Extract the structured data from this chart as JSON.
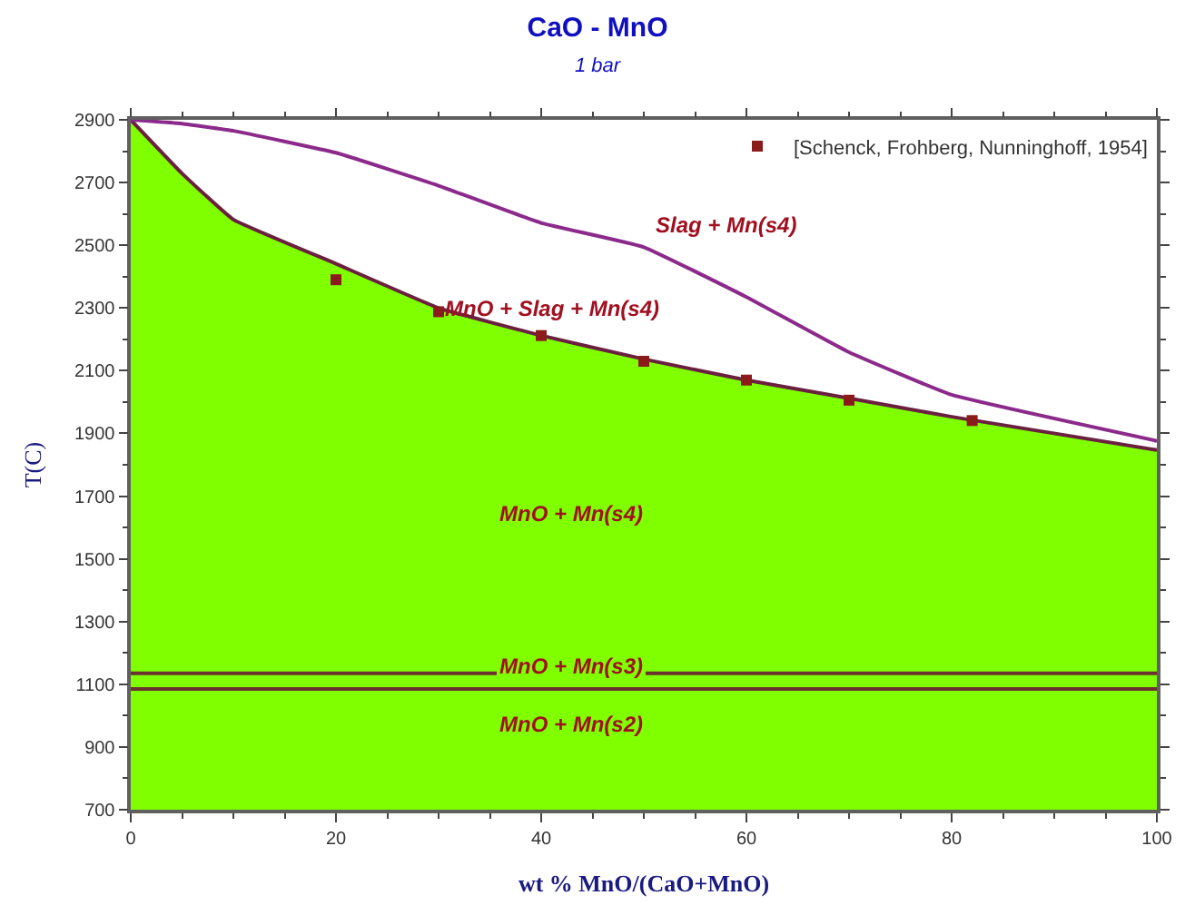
{
  "chart_data": {
    "type": "line",
    "title": "CaO - MnO",
    "subtitle": "1 bar",
    "xlabel": "wt % MnO/(CaO+MnO)",
    "ylabel": "T(C)",
    "xlim": [
      0,
      100
    ],
    "xticks": [
      0,
      20,
      40,
      60,
      80,
      100
    ],
    "ylim": [
      700,
      2900
    ],
    "yticks": [
      700,
      900,
      1100,
      1300,
      1500,
      1700,
      1900,
      2100,
      2300,
      2500,
      2700,
      2900
    ],
    "legend": "top right",
    "series": [
      {
        "type": "area",
        "color": "#80ff00",
        "x": [
          0,
          5,
          10,
          20,
          30,
          40,
          50,
          60,
          70,
          80,
          100
        ],
        "values": [
          2900,
          2729,
          2582,
          2441,
          2300,
          2212,
          2137,
          2070,
          2012,
          1953,
          1847
        ]
      },
      {
        "color": "#6b2040",
        "x": [
          0,
          5,
          10,
          20,
          30,
          40,
          50,
          60,
          70,
          80,
          100
        ],
        "values": [
          2900,
          2729,
          2582,
          2441,
          2300,
          2212,
          2137,
          2070,
          2012,
          1953,
          1847
        ]
      },
      {
        "color": "#8b2a8b",
        "x": [
          0,
          5,
          10,
          20,
          30,
          40,
          50,
          60,
          70,
          80,
          100
        ],
        "values": [
          2900,
          2888,
          2865,
          2795,
          2690,
          2571,
          2494,
          2335,
          2159,
          2023,
          1876
        ]
      },
      {
        "type": "scatter",
        "name": "[Schenck, Frohberg, Nunninghoff, 1954]",
        "marker": "square",
        "color": "#8b1a1a",
        "x": [
          20,
          30,
          40,
          50,
          60,
          70,
          82
        ],
        "values": [
          2390,
          2288,
          2212,
          2130,
          2070,
          2006,
          1941
        ]
      }
    ],
    "ref_lines": [
      {
        "axis": "y",
        "value": 1135,
        "color": "#6b3030"
      },
      {
        "axis": "y",
        "value": 1085,
        "color": "#6b3030"
      }
    ],
    "annotations": [
      "Slag + Mn(s4)",
      "MnO + Slag + Mn(s4)",
      "MnO + Mn(s4)",
      "MnO + Mn(s3)",
      "MnO + Mn(s2)"
    ]
  }
}
